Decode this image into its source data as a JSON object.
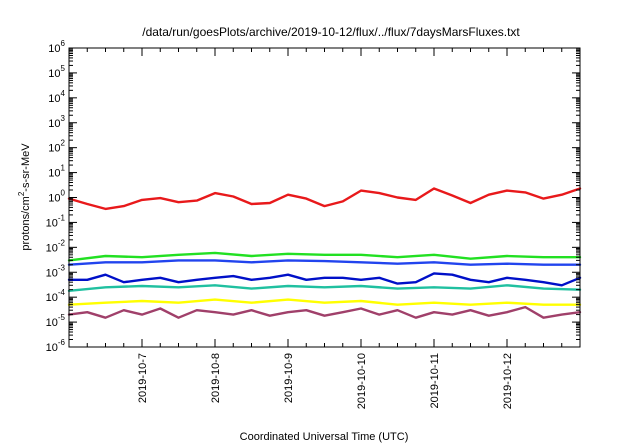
{
  "chart_data": {
    "type": "line",
    "title": "/data/run/goesPlots/archive/2019-10-12/flux/../flux/7daysMarsFluxes.txt",
    "xlabel": "Coordinated Universal Time (UTC)",
    "ylabel": {
      "prefix": "protons/cm",
      "sup": "2",
      "suffix": "-s-sr-MeV"
    },
    "x_ticks": [
      "2019-10-7",
      "2019-10-8",
      "2019-10-9",
      "2019-10-10",
      "2019-10-11",
      "2019-10-12"
    ],
    "x_tick_days": [
      1,
      2,
      3,
      4,
      5,
      6
    ],
    "xlim_days": [
      0,
      7
    ],
    "y_scale": "log",
    "ylim": [
      1e-06,
      1000000.0
    ],
    "y_ticks": [
      {
        "exp": -6,
        "label": "10",
        "sup": "-6"
      },
      {
        "exp": -5,
        "label": "10",
        "sup": "-5"
      },
      {
        "exp": -4,
        "label": "10",
        "sup": "-4"
      },
      {
        "exp": -3,
        "label": "10",
        "sup": "-3"
      },
      {
        "exp": -2,
        "label": "10",
        "sup": "-2"
      },
      {
        "exp": -1,
        "label": "10",
        "sup": "-1"
      },
      {
        "exp": 0,
        "label": "10",
        "sup": "0"
      },
      {
        "exp": 1,
        "label": "10",
        "sup": "1"
      },
      {
        "exp": 2,
        "label": "10",
        "sup": "2"
      },
      {
        "exp": 3,
        "label": "10",
        "sup": "3"
      },
      {
        "exp": 4,
        "label": "10",
        "sup": "4"
      },
      {
        "exp": 5,
        "label": "10",
        "sup": "5"
      },
      {
        "exp": 6,
        "label": "10",
        "sup": "6"
      }
    ],
    "grid": false,
    "series": [
      {
        "color": "#e8191b",
        "x": [
          0.0,
          0.25,
          0.5,
          0.75,
          1.0,
          1.25,
          1.5,
          1.75,
          2.0,
          2.25,
          2.5,
          2.75,
          3.0,
          3.25,
          3.5,
          3.75,
          4.0,
          4.25,
          4.5,
          4.75,
          5.0,
          5.25,
          5.5,
          5.75,
          6.0,
          6.25,
          6.5,
          6.75,
          7.0
        ],
        "y": [
          0.9,
          0.55,
          0.35,
          0.45,
          0.8,
          0.95,
          0.65,
          0.75,
          1.5,
          1.1,
          0.55,
          0.6,
          1.3,
          0.9,
          0.45,
          0.7,
          1.9,
          1.5,
          1.0,
          0.8,
          2.3,
          1.2,
          0.6,
          1.3,
          1.9,
          1.6,
          0.9,
          1.3,
          2.3
        ]
      },
      {
        "color": "#22e022",
        "x": [
          0.0,
          0.5,
          1.0,
          1.5,
          2.0,
          2.5,
          3.0,
          3.5,
          4.0,
          4.5,
          5.0,
          5.5,
          6.0,
          6.5,
          7.0
        ],
        "y": [
          0.003,
          0.0045,
          0.004,
          0.005,
          0.006,
          0.0045,
          0.0055,
          0.005,
          0.005,
          0.004,
          0.005,
          0.0035,
          0.0045,
          0.004,
          0.004
        ]
      },
      {
        "color": "#2244ee",
        "x": [
          0.0,
          0.5,
          1.0,
          1.5,
          2.0,
          2.5,
          3.0,
          3.5,
          4.0,
          4.5,
          5.0,
          5.5,
          6.0,
          6.5,
          7.0
        ],
        "y": [
          0.002,
          0.0025,
          0.0025,
          0.003,
          0.003,
          0.0025,
          0.003,
          0.0028,
          0.0025,
          0.0022,
          0.0025,
          0.002,
          0.0022,
          0.002,
          0.002
        ]
      },
      {
        "color": "#0010c8",
        "x": [
          0.0,
          0.25,
          0.5,
          0.75,
          1.0,
          1.25,
          1.5,
          1.75,
          2.0,
          2.25,
          2.5,
          2.75,
          3.0,
          3.25,
          3.5,
          3.75,
          4.0,
          4.25,
          4.5,
          4.75,
          5.0,
          5.25,
          5.5,
          5.75,
          6.0,
          6.25,
          6.5,
          6.75,
          7.0
        ],
        "y": [
          0.0005,
          0.0005,
          0.0008,
          0.0004,
          0.0005,
          0.0006,
          0.0004,
          0.0005,
          0.0006,
          0.0007,
          0.0005,
          0.0006,
          0.0008,
          0.0005,
          0.0006,
          0.0006,
          0.0005,
          0.0006,
          0.00035,
          0.0004,
          0.0009,
          0.0008,
          0.0005,
          0.0004,
          0.0006,
          0.0005,
          0.0004,
          0.0003,
          0.0006
        ]
      },
      {
        "color": "#20c0a0",
        "x": [
          0.0,
          0.5,
          1.0,
          1.5,
          2.0,
          2.5,
          3.0,
          3.5,
          4.0,
          4.5,
          5.0,
          5.5,
          6.0,
          6.5,
          7.0
        ],
        "y": [
          0.00018,
          0.00025,
          0.00028,
          0.00025,
          0.0003,
          0.00022,
          0.00028,
          0.00025,
          0.00028,
          0.00022,
          0.00025,
          0.00022,
          0.0003,
          0.00022,
          0.0002
        ]
      },
      {
        "color": "#ffff00",
        "x": [
          0.0,
          0.5,
          1.0,
          1.5,
          2.0,
          2.5,
          3.0,
          3.5,
          4.0,
          4.5,
          5.0,
          5.5,
          6.0,
          6.5,
          7.0
        ],
        "y": [
          5e-05,
          6e-05,
          7e-05,
          6e-05,
          8e-05,
          6e-05,
          8e-05,
          6e-05,
          7e-05,
          5e-05,
          6e-05,
          5e-05,
          6e-05,
          5e-05,
          5e-05
        ]
      },
      {
        "color": "#a0406a",
        "x": [
          0.0,
          0.25,
          0.5,
          0.75,
          1.0,
          1.25,
          1.5,
          1.75,
          2.0,
          2.25,
          2.5,
          2.75,
          3.0,
          3.25,
          3.5,
          3.75,
          4.0,
          4.25,
          4.5,
          4.75,
          5.0,
          5.25,
          5.5,
          5.75,
          6.0,
          6.25,
          6.5,
          6.75,
          7.0
        ],
        "y": [
          2e-05,
          2.5e-05,
          1.5e-05,
          3e-05,
          2e-05,
          3.5e-05,
          1.5e-05,
          3e-05,
          2.5e-05,
          2e-05,
          3e-05,
          1.8e-05,
          2.5e-05,
          3e-05,
          1.8e-05,
          2.5e-05,
          3.5e-05,
          2e-05,
          3e-05,
          1.5e-05,
          2.5e-05,
          2e-05,
          3e-05,
          1.8e-05,
          2.5e-05,
          4e-05,
          1.5e-05,
          2e-05,
          2.5e-05
        ]
      }
    ]
  }
}
